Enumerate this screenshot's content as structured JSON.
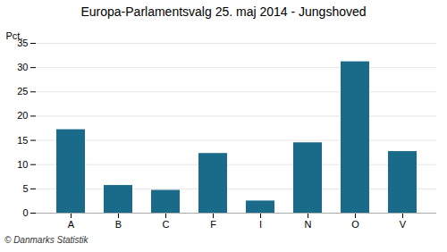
{
  "chart_data": {
    "type": "bar",
    "title": "Europa-Parlamentsvalg 25. maj 2014 - Jungshoved",
    "ylabel": "Pct.",
    "categories": [
      "A",
      "B",
      "C",
      "F",
      "I",
      "N",
      "O",
      "V"
    ],
    "values": [
      17.2,
      5.7,
      4.7,
      12.3,
      2.5,
      14.5,
      31.2,
      12.7
    ],
    "color": "#1a6b8a",
    "ylim": [
      0,
      35
    ],
    "yticks": [
      0,
      5,
      10,
      15,
      20,
      25,
      30,
      35
    ],
    "grid": true,
    "footer": "© Danmarks Statistik"
  }
}
